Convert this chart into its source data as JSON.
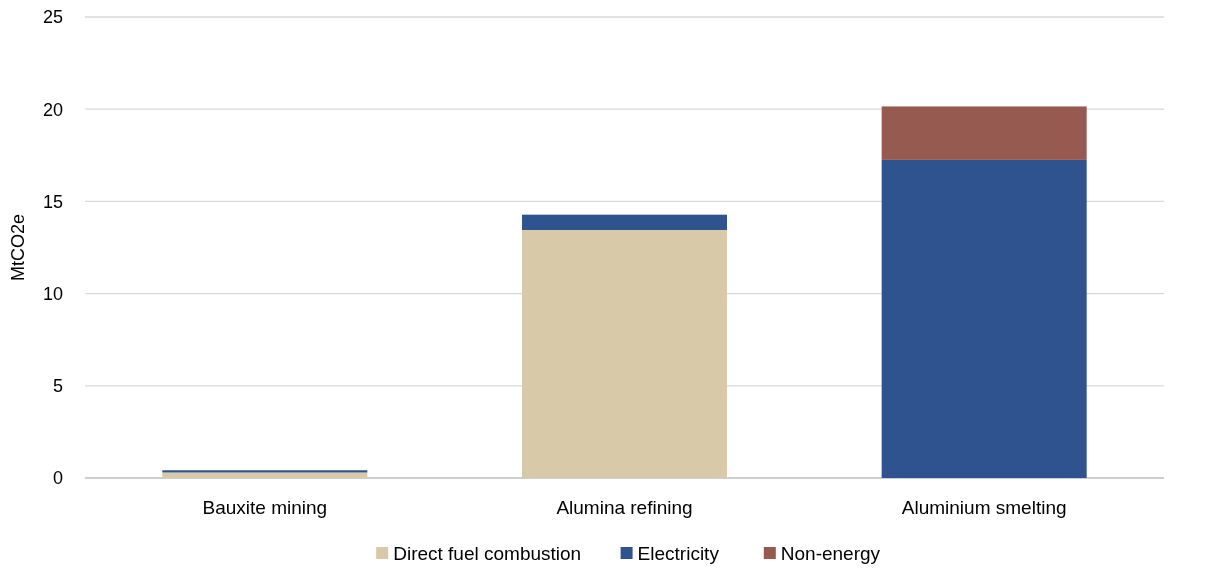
{
  "chart_data": {
    "type": "bar",
    "ylabel": "MtCO2e",
    "categories": [
      "Bauxite mining",
      "Alumina refining",
      "Aluminium smelting"
    ],
    "stacked": true,
    "series": [
      {
        "name": "Direct fuel combustion",
        "color": "#d8c9a8",
        "values": [
          0.3,
          13.45,
          0
        ]
      },
      {
        "name": "Electricity",
        "color": "#2f538f",
        "values": [
          0.12,
          0.83,
          17.25
        ]
      },
      {
        "name": "Non-energy",
        "color": "#975a51",
        "values": [
          0,
          0,
          2.9
        ]
      }
    ],
    "ylim": [
      0,
      25
    ],
    "yticks": [
      0,
      5,
      10,
      15,
      20,
      25
    ],
    "grid": "y",
    "legend": "bottom"
  }
}
